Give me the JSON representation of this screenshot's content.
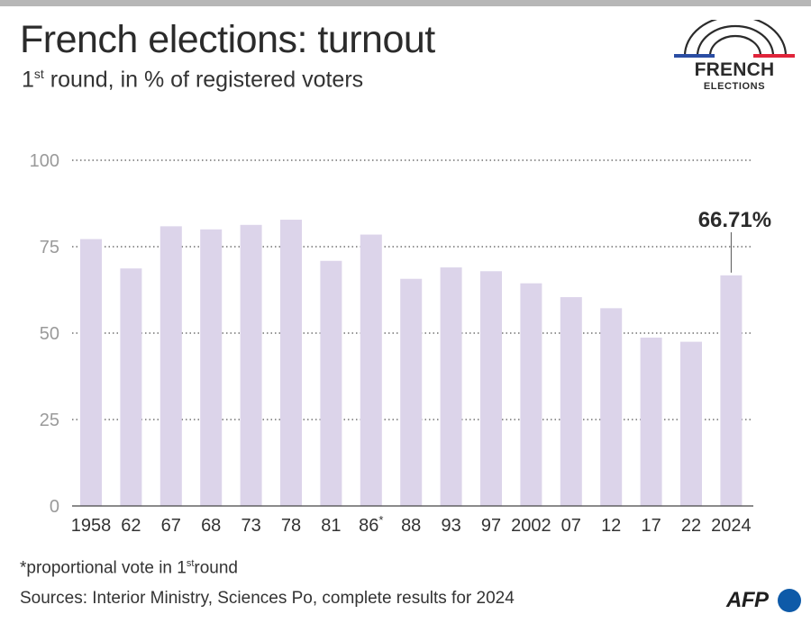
{
  "header": {
    "title": "French elections: turnout",
    "subtitle_prefix": "1",
    "subtitle_sup": "st",
    "subtitle_rest": " round, in % of registered voters"
  },
  "logo": {
    "word": "FRENCH",
    "sub": "ELECTIONS",
    "colors": {
      "blue": "#2a4da3",
      "red": "#e0243a",
      "arc": "#2b2b2b"
    }
  },
  "footer": {
    "note_prefix": "*proportional vote in 1",
    "note_sup": "st",
    "note_rest": "round",
    "sources": "Sources: Interior Ministry, Sciences Po, complete results for 2024",
    "brand": "AFP",
    "brand_color": "#0e5aa8"
  },
  "chart_data": {
    "type": "bar",
    "categories": [
      "1958",
      "62",
      "67",
      "68",
      "73",
      "78",
      "81",
      "86*",
      "88",
      "93",
      "97",
      "2002",
      "07",
      "12",
      "17",
      "22",
      "2024"
    ],
    "values": [
      77.2,
      68.7,
      80.9,
      80.0,
      81.3,
      82.8,
      70.9,
      78.5,
      65.7,
      69.0,
      67.9,
      64.4,
      60.4,
      57.2,
      48.7,
      47.5,
      66.71
    ],
    "ylim": [
      0,
      100
    ],
    "yticks": [
      0,
      25,
      50,
      75,
      100
    ],
    "annotation": {
      "category": "2024",
      "label": "66.71%"
    },
    "grid": true,
    "bar_color": "#dcd4ea",
    "grid_color": "#555555",
    "tick_color": "#9a9a9a"
  }
}
